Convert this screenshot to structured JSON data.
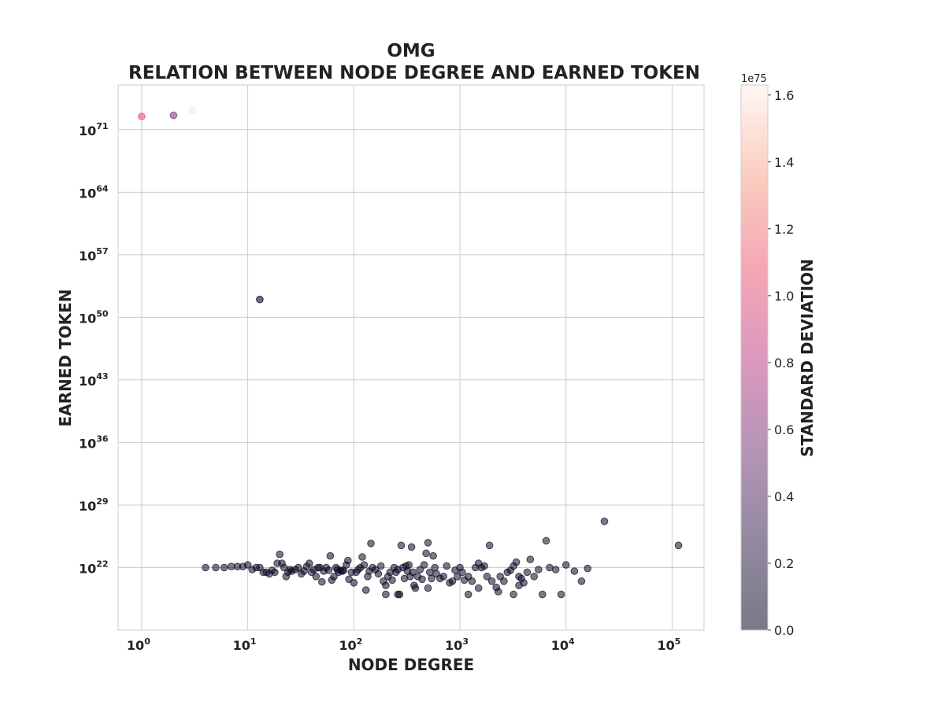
{
  "chart_data": {
    "type": "scatter",
    "title_line1": "OMG",
    "title_line2": "RELATION BETWEEN NODE DEGREE AND EARNED TOKEN",
    "xlabel": "NODE DEGREE",
    "ylabel": "EARNED TOKEN",
    "x_scale": "log",
    "y_scale": "log",
    "x_ticks": [
      {
        "base": "10",
        "exp": "0"
      },
      {
        "base": "10",
        "exp": "1"
      },
      {
        "base": "10",
        "exp": "2"
      },
      {
        "base": "10",
        "exp": "3"
      },
      {
        "base": "10",
        "exp": "4"
      },
      {
        "base": "10",
        "exp": "5"
      }
    ],
    "y_ticks": [
      {
        "base": "10",
        "exp": "22"
      },
      {
        "base": "10",
        "exp": "29"
      },
      {
        "base": "10",
        "exp": "36"
      },
      {
        "base": "10",
        "exp": "43"
      },
      {
        "base": "10",
        "exp": "50"
      },
      {
        "base": "10",
        "exp": "57"
      },
      {
        "base": "10",
        "exp": "64"
      },
      {
        "base": "10",
        "exp": "71"
      }
    ],
    "xlim": [
      0.6,
      200000
    ],
    "ylim": [
      1000000000000000.0,
      1e+76
    ],
    "grid": true,
    "colorbar": {
      "label": "STANDARD DEVIATION",
      "multiplier": "1e75",
      "ticks": [
        "0.0",
        "0.2",
        "0.4",
        "0.6",
        "0.8",
        "1.0",
        "1.2",
        "1.4",
        "1.6"
      ],
      "range": [
        0,
        1.63
      ],
      "colormap": [
        "#0b0b24",
        "#3b2a54",
        "#7a3e7a",
        "#c0448a",
        "#ea6078",
        "#f7a58c",
        "#fdf1e8"
      ]
    },
    "highlighted_points": [
      {
        "x": 1,
        "y": 3e+72,
        "std": 1.0
      },
      {
        "x": 2,
        "y": 4e+72,
        "std": 0.6
      },
      {
        "x": 3,
        "y": 1.5e+73,
        "std": 1.6
      },
      {
        "x": 13,
        "y": 1e+52,
        "std": 0.0
      }
    ],
    "points": [
      [
        4,
        1e+22
      ],
      [
        5,
        1e+22
      ],
      [
        6,
        1e+22
      ],
      [
        7,
        1.3e+22
      ],
      [
        8,
        1.3e+22
      ],
      [
        9,
        1.3e+22
      ],
      [
        10,
        2e+22
      ],
      [
        11,
        6e+21
      ],
      [
        12,
        1e+22
      ],
      [
        13,
        1e+22
      ],
      [
        14,
        3e+21
      ],
      [
        15,
        3e+21
      ],
      [
        16,
        2e+21
      ],
      [
        17,
        5e+21
      ],
      [
        18,
        3e+21
      ],
      [
        19,
        3e+22
      ],
      [
        20,
        3e+23
      ],
      [
        21,
        3e+22
      ],
      [
        22,
        1e+22
      ],
      [
        23,
        1e+21
      ],
      [
        24,
        3e+21
      ],
      [
        25,
        6e+21
      ],
      [
        26,
        4e+21
      ],
      [
        28,
        6e+21
      ],
      [
        30,
        1e+22
      ],
      [
        32,
        2e+21
      ],
      [
        34,
        4e+21
      ],
      [
        36,
        1.3e+22
      ],
      [
        38,
        3e+22
      ],
      [
        40,
        3e+21
      ],
      [
        42,
        6e+21
      ],
      [
        44,
        1e+21
      ],
      [
        46,
        1e+22
      ],
      [
        48,
        1e+22
      ],
      [
        50,
        2.5e+20
      ],
      [
        52,
        4e+21
      ],
      [
        55,
        1e+22
      ],
      [
        58,
        5e+21
      ],
      [
        60,
        2e+23
      ],
      [
        62,
        4e+20
      ],
      [
        65,
        1e+21
      ],
      [
        68,
        1e+22
      ],
      [
        70,
        6e+21
      ],
      [
        72,
        3e+21
      ],
      [
        75,
        5e+21
      ],
      [
        78,
        4e+21
      ],
      [
        80,
        5e+21
      ],
      [
        85,
        2e+22
      ],
      [
        88,
        6e+22
      ],
      [
        90,
        5e+20
      ],
      [
        95,
        3e+21
      ],
      [
        100,
        2e+20
      ],
      [
        105,
        3e+21
      ],
      [
        110,
        6e+21
      ],
      [
        115,
        1e+22
      ],
      [
        120,
        1.5e+23
      ],
      [
        125,
        2e+22
      ],
      [
        130,
        3e+19
      ],
      [
        135,
        1e+21
      ],
      [
        140,
        4e+21
      ],
      [
        145,
        5e+24
      ],
      [
        150,
        1e+22
      ],
      [
        160,
        6e+21
      ],
      [
        170,
        2e+21
      ],
      [
        180,
        1.5e+22
      ],
      [
        190,
        3e+20
      ],
      [
        200,
        1e+19
      ],
      [
        210,
        1e+21
      ],
      [
        220,
        3e+21
      ],
      [
        230,
        4e+20
      ],
      [
        240,
        1e+22
      ],
      [
        250,
        3e+21
      ],
      [
        260,
        6e+21
      ],
      [
        270,
        1e+19
      ],
      [
        280,
        3e+24
      ],
      [
        290,
        1e+22
      ],
      [
        300,
        6e+20
      ],
      [
        310,
        1.5e+22
      ],
      [
        320,
        4e+21
      ],
      [
        330,
        2e+22
      ],
      [
        340,
        1e+21
      ],
      [
        350,
        2e+24
      ],
      [
        360,
        3e+21
      ],
      [
        370,
        1e+20
      ],
      [
        380,
        5e+19
      ],
      [
        400,
        1e+21
      ],
      [
        420,
        6e+21
      ],
      [
        440,
        5e+20
      ],
      [
        460,
        2e+22
      ],
      [
        480,
        4e+23
      ],
      [
        500,
        6e+24
      ],
      [
        520,
        3e+21
      ],
      [
        540,
        6e+20
      ],
      [
        560,
        2e+23
      ],
      [
        580,
        1e+22
      ],
      [
        600,
        2e+21
      ],
      [
        650,
        6e+20
      ],
      [
        700,
        1e+21
      ],
      [
        750,
        1.5e+22
      ],
      [
        800,
        2e+20
      ],
      [
        850,
        3e+20
      ],
      [
        900,
        5e+21
      ],
      [
        950,
        1e+21
      ],
      [
        1000,
        1e+22
      ],
      [
        1050,
        3e+21
      ],
      [
        1100,
        4e+20
      ],
      [
        1200,
        1e+21
      ],
      [
        1300,
        3e+20
      ],
      [
        1400,
        1e+22
      ],
      [
        1500,
        3e+22
      ],
      [
        1600,
        1e+22
      ],
      [
        1700,
        1.5e+22
      ],
      [
        1800,
        1e+21
      ],
      [
        1900,
        3e+24
      ],
      [
        2000,
        3e+20
      ],
      [
        2200,
        6e+19
      ],
      [
        2400,
        1e+21
      ],
      [
        2600,
        3e+20
      ],
      [
        2800,
        3e+21
      ],
      [
        3000,
        5e+21
      ],
      [
        3200,
        1.5e+22
      ],
      [
        3400,
        4e+22
      ],
      [
        3600,
        1e+21
      ],
      [
        3800,
        6e+20
      ],
      [
        4000,
        2e+20
      ],
      [
        4300,
        3e+21
      ],
      [
        4600,
        8e+22
      ],
      [
        5000,
        1e+21
      ],
      [
        5500,
        6e+21
      ],
      [
        6000,
        1e+19
      ],
      [
        6500,
        1e+25
      ],
      [
        7000,
        1e+22
      ],
      [
        8000,
        6e+21
      ],
      [
        9000,
        1e+19
      ],
      [
        10000,
        2e+22
      ],
      [
        12000,
        4e+21
      ],
      [
        14000,
        3e+20
      ],
      [
        16000,
        8e+21
      ],
      [
        23000,
        1.5e+27
      ],
      [
        115000,
        3e+24
      ],
      [
        260,
        1e+19
      ],
      [
        1200,
        1e+19
      ],
      [
        2300,
        2e+19
      ],
      [
        3200,
        1e+19
      ],
      [
        500,
        5e+19
      ],
      [
        200,
        1e+20
      ],
      [
        1500,
        5e+19
      ],
      [
        3600,
        1e+20
      ]
    ]
  }
}
